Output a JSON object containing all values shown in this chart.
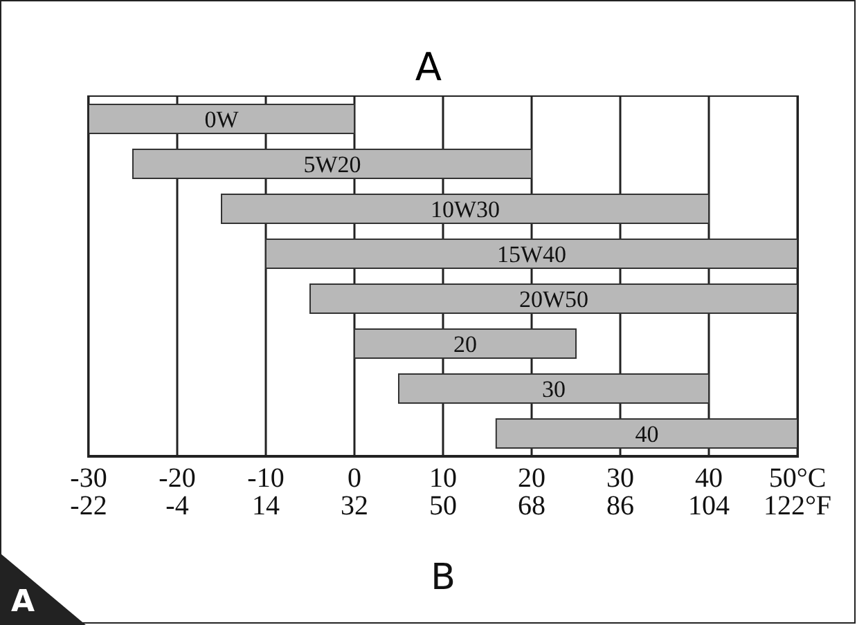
{
  "chart_data": {
    "type": "bar",
    "orientation": "horizontal",
    "title": "A",
    "xlabel": "B",
    "annotations": [
      "A"
    ],
    "categories": [
      "0W",
      "5W20",
      "10W30",
      "15W40",
      "20W50",
      "20",
      "30",
      "40"
    ],
    "base": [
      -30,
      -25,
      -15,
      -10,
      -5,
      0,
      5,
      16
    ],
    "values": [
      30,
      45,
      55,
      60,
      55,
      25,
      35,
      34
    ],
    "color": "#b8b8b8",
    "xlim": [
      -30,
      50
    ],
    "xticks": [
      -30,
      -20,
      -10,
      0,
      10,
      20,
      30,
      40,
      {
        "value": 50,
        "label": "50°C"
      }
    ],
    "x2lim": [
      -22,
      122
    ],
    "x2ticks": [
      -22,
      -4,
      14,
      32,
      50,
      68,
      86,
      104,
      {
        "value": 122,
        "label": "122°F"
      }
    ],
    "grid": "x",
    "tick_labels": "x"
  }
}
